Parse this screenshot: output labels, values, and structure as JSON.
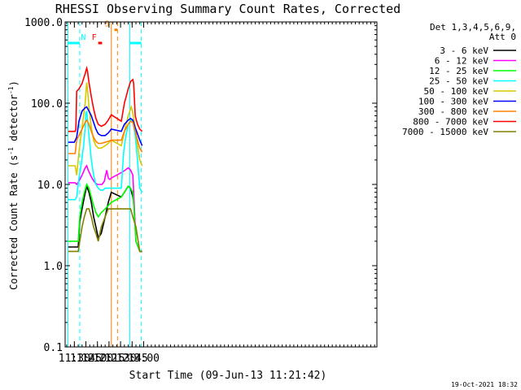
{
  "chart_data": {
    "type": "line",
    "title": "RHESSI Observing Summary Count Rates, Corrected",
    "xlabel": "Start Time (09-Jun-13 11:21:42)",
    "ylabel_main": "Corrected Count Rate (s",
    "ylabel_sup1": "-1",
    "ylabel_mid": " detector",
    "ylabel_sup2": "-1",
    "ylabel_end": ")",
    "y_scale": "log",
    "ylim": [
      0.1,
      1000
    ],
    "xlim_minutes": [
      678,
      1083
    ],
    "x_ticks": [
      {
        "min": 690,
        "label": "11:30"
      },
      {
        "min": 705,
        "label": "11:45"
      },
      {
        "min": 720,
        "label": "12:00"
      },
      {
        "min": 735,
        "label": "12:15"
      },
      {
        "min": 750,
        "label": "12:30"
      },
      {
        "min": 765,
        "label": "12:45"
      },
      {
        "min": 780,
        "label": "13:00"
      }
    ],
    "y_ticks": [
      {
        "value": 0.1,
        "label": "0.1"
      },
      {
        "value": 1,
        "label": "1.0"
      },
      {
        "value": 10,
        "label": "10.0"
      },
      {
        "value": 100,
        "label": "100.0"
      },
      {
        "value": 1000,
        "label": "1000.0"
      }
    ],
    "legend_header": [
      "Det 1,3,4,5,6,9,",
      "Att 0"
    ],
    "legend_position": "top-right outside",
    "grid": false,
    "series": [
      {
        "name": "3 - 6 keV",
        "color": "#000000",
        "x": [
          "11:22",
          "11:35",
          "11:37",
          "11:40",
          "11:43",
          "11:46",
          "11:49",
          "11:52",
          "11:55",
          "11:58",
          "12:01",
          "12:05",
          "12:10",
          "12:14",
          "12:18",
          "12:31",
          "12:35",
          "12:40",
          "12:43",
          "12:46",
          "12:47"
        ],
        "y": [
          1.7,
          1.7,
          3.5,
          5,
          7,
          9.5,
          8,
          6,
          4,
          3,
          2.2,
          2.5,
          4,
          6,
          8,
          7,
          8,
          9.5,
          9,
          7,
          6
        ]
      },
      {
        "name": "6 - 12 keV",
        "color": "#ff00ff",
        "x": [
          "11:22",
          "11:31",
          "11:33",
          "11:36",
          "11:40",
          "11:44",
          "11:46",
          "11:48",
          "11:51",
          "11:54",
          "11:57",
          "12:00",
          "12:03",
          "12:06",
          "12:09",
          "12:12",
          "12:14",
          "12:16",
          "12:18",
          "12:31",
          "12:36",
          "12:40",
          "12:43",
          "12:46",
          "12:50",
          "12:55",
          "12:58"
        ],
        "y": [
          10.5,
          10.5,
          10,
          11,
          13,
          16,
          17,
          15,
          13,
          11.5,
          10.5,
          10,
          10,
          10,
          11,
          15,
          12,
          11.5,
          12,
          14,
          15,
          16,
          15,
          13,
          2,
          1.5,
          1.5
        ]
      },
      {
        "name": "12 - 25 keV",
        "color": "#00ff00",
        "x": [
          "11:22",
          "11:35",
          "11:37",
          "11:40",
          "11:43",
          "11:46",
          "11:49",
          "11:52",
          "11:55",
          "11:58",
          "12:01",
          "12:05",
          "12:10",
          "12:14",
          "12:18",
          "12:31",
          "12:35",
          "12:40",
          "12:43",
          "12:46",
          "12:50",
          "12:55",
          "12:58"
        ],
        "y": [
          2,
          2,
          4,
          6,
          8,
          10,
          9,
          7,
          5.5,
          4.5,
          4,
          4.5,
          5,
          5.5,
          6,
          7,
          8,
          9.5,
          9,
          8,
          2,
          1.5,
          1.5
        ]
      },
      {
        "name": "25 - 50 keV",
        "color": "#00ffff",
        "x": [
          "11:22",
          "11:31",
          "11:33",
          "11:36",
          "11:39",
          "11:42",
          "11:44",
          "11:45",
          "11:46",
          "11:47",
          "11:49",
          "11:52",
          "11:55",
          "11:58",
          "12:01",
          "12:04",
          "12:07",
          "12:10",
          "12:13",
          "12:16",
          "12:18",
          "12:31",
          "12:34",
          "12:37",
          "12:40",
          "12:43",
          "12:46",
          "12:49",
          "12:52",
          "12:55",
          "12:58"
        ],
        "y": [
          6.5,
          6.5,
          7,
          12,
          18,
          30,
          50,
          75,
          80,
          65,
          40,
          20,
          13,
          10,
          9,
          8.5,
          8.5,
          9,
          9,
          9,
          9,
          9,
          25,
          40,
          55,
          62,
          60,
          40,
          20,
          9,
          8
        ]
      },
      {
        "name": "50 - 100 keV",
        "color": "#d8c800",
        "x": [
          "11:22",
          "11:31",
          "11:33",
          "11:36",
          "11:40",
          "11:44",
          "11:46",
          "11:47",
          "11:49",
          "11:52",
          "11:55",
          "11:58",
          "12:01",
          "12:05",
          "12:10",
          "12:14",
          "12:18",
          "12:31",
          "12:34",
          "12:37",
          "12:40",
          "12:43",
          "12:44",
          "12:46",
          "12:49",
          "12:52",
          "12:55",
          "12:58"
        ],
        "y": [
          17,
          17,
          13,
          25,
          50,
          100,
          180,
          150,
          90,
          50,
          35,
          30,
          28,
          28,
          30,
          32,
          35,
          30,
          40,
          55,
          70,
          85,
          90,
          75,
          50,
          30,
          20,
          17
        ]
      },
      {
        "name": "100 - 300 keV",
        "color": "#0000ff",
        "x": [
          "11:22",
          "11:30",
          "11:33",
          "11:36",
          "11:40",
          "11:44",
          "11:46",
          "11:49",
          "11:52",
          "11:55",
          "11:58",
          "12:01",
          "12:05",
          "12:10",
          "12:14",
          "12:18",
          "12:31",
          "12:35",
          "12:40",
          "12:43",
          "12:46",
          "12:49",
          "12:52",
          "12:55",
          "12:58"
        ],
        "y": [
          33,
          33,
          38,
          60,
          80,
          88,
          90,
          80,
          70,
          58,
          48,
          42,
          40,
          40,
          43,
          48,
          45,
          55,
          62,
          65,
          62,
          50,
          42,
          35,
          30
        ]
      },
      {
        "name": "300 - 800 keV",
        "color": "#ff8000",
        "x": [
          "11:22",
          "11:31",
          "11:33",
          "11:36",
          "11:40",
          "11:44",
          "11:46",
          "11:49",
          "11:52",
          "11:55",
          "11:58",
          "12:01",
          "12:05",
          "12:10",
          "12:14",
          "12:18",
          "12:31",
          "12:35",
          "12:40",
          "12:43",
          "12:46",
          "12:49",
          "12:52",
          "12:55",
          "12:58"
        ],
        "y": [
          24,
          24,
          35,
          40,
          48,
          58,
          62,
          55,
          45,
          38,
          34,
          32,
          32,
          33,
          34,
          35,
          35,
          45,
          55,
          60,
          58,
          45,
          35,
          28,
          25
        ]
      },
      {
        "name": "800 - 7000 keV",
        "color": "#ff0000",
        "x": [
          "11:22",
          "11:31",
          "11:32",
          "11:33",
          "11:36",
          "11:40",
          "11:44",
          "11:46",
          "11:47",
          "11:49",
          "11:52",
          "11:55",
          "11:58",
          "12:01",
          "12:05",
          "12:10",
          "12:14",
          "12:18",
          "12:31",
          "12:35",
          "12:40",
          "12:43",
          "12:46",
          "12:47",
          "12:49",
          "12:52",
          "12:55",
          "12:58"
        ],
        "y": [
          45,
          45,
          48,
          140,
          150,
          175,
          230,
          270,
          250,
          180,
          120,
          85,
          65,
          55,
          52,
          55,
          62,
          72,
          60,
          100,
          150,
          185,
          195,
          175,
          70,
          55,
          48,
          45
        ]
      },
      {
        "name": "7000 - 15000 keV",
        "color": "#808000",
        "x": [
          "11:22",
          "11:35",
          "11:37",
          "11:40",
          "11:43",
          "11:46",
          "11:49",
          "11:52",
          "11:55",
          "11:58",
          "12:01",
          "12:05",
          "12:10",
          "12:14",
          "12:18",
          "12:31",
          "12:35",
          "12:40",
          "12:43",
          "12:46",
          "12:50",
          "12:55",
          "12:58"
        ],
        "y": [
          1.5,
          1.5,
          2,
          3,
          4,
          5,
          5,
          4,
          3,
          2.5,
          2,
          3,
          4,
          5,
          5,
          5,
          5,
          5,
          5,
          4,
          3,
          1.5,
          1.5
        ]
      }
    ],
    "bars": [
      {
        "name": "N",
        "color": "#00ffff",
        "ranges": [
          [
            "11:22",
            "11:37"
          ],
          [
            "12:42",
            "12:57"
          ]
        ],
        "level": 550
      },
      {
        "name": "F",
        "color": "#ff0000",
        "ranges": [
          [
            "12:01",
            "12:06"
          ]
        ],
        "level": 550
      },
      {
        "name": "S",
        "color": "#ff8000",
        "ranges": [
          [
            "12:22",
            "12:26"
          ]
        ],
        "level": 800
      }
    ],
    "vlines": [
      {
        "time": "11:21.7",
        "color": "#00ffff",
        "style": "solid"
      },
      {
        "time": "11:37",
        "color": "#00ffff",
        "style": "dashed"
      },
      {
        "time": "12:18",
        "color": "#ff8000",
        "style": "solid"
      },
      {
        "time": "12:26",
        "color": "#ff8000",
        "style": "dashed"
      },
      {
        "time": "12:42",
        "color": "#00ffff",
        "style": "solid"
      },
      {
        "time": "12:57",
        "color": "#00ffff",
        "style": "dashed"
      }
    ],
    "footer_date": "19-Oct-2021 18:32"
  }
}
